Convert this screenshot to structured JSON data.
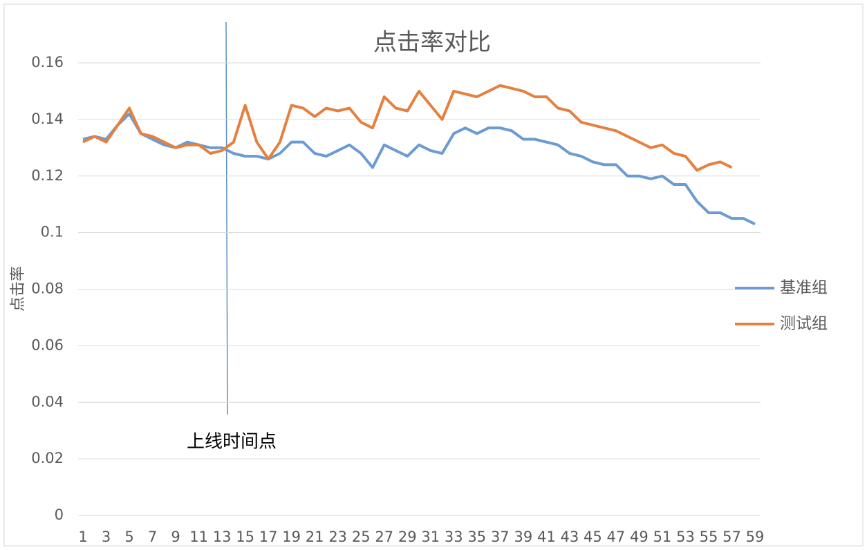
{
  "chart_data": {
    "type": "line",
    "title": "点击率对比",
    "y_label": "点击率",
    "annotation": "上线时间点",
    "categories": [
      "1",
      null,
      "3",
      null,
      "5",
      null,
      "7",
      null,
      "9",
      null,
      "11",
      null,
      "13",
      null,
      "15",
      null,
      "17",
      null,
      "19",
      null,
      "21",
      null,
      "23",
      null,
      "25",
      null,
      "27",
      null,
      "29",
      null,
      "31",
      null,
      "33",
      null,
      "35",
      null,
      "37",
      null,
      "39",
      null,
      "41",
      null,
      "43",
      null,
      "45",
      null,
      "47",
      null,
      "49",
      null,
      "51",
      null,
      "53",
      null,
      "55",
      null,
      "57",
      null,
      "59"
    ],
    "series": [
      {
        "name": "基准组",
        "color": "#6b9bd2",
        "values": [
          0.133,
          0.134,
          0.133,
          0.138,
          0.142,
          0.135,
          0.133,
          0.131,
          0.13,
          0.132,
          0.131,
          0.13,
          0.13,
          0.128,
          0.127,
          0.127,
          0.126,
          0.128,
          0.132,
          0.132,
          0.128,
          0.127,
          0.129,
          0.131,
          0.128,
          0.123,
          0.131,
          0.129,
          0.127,
          0.131,
          0.129,
          0.128,
          0.135,
          0.137,
          0.135,
          0.137,
          0.137,
          0.136,
          0.133,
          0.133,
          0.132,
          0.131,
          0.128,
          0.127,
          0.125,
          0.124,
          0.124,
          0.12,
          0.12,
          0.119,
          0.12,
          0.117,
          0.117,
          0.111,
          0.107,
          0.107,
          0.105,
          0.105,
          0.103
        ]
      },
      {
        "name": "测试组",
        "color": "#e5803f",
        "values": [
          0.132,
          0.134,
          0.132,
          0.138,
          0.144,
          0.135,
          0.134,
          0.132,
          0.13,
          0.131,
          0.131,
          0.128,
          0.129,
          0.132,
          0.145,
          0.132,
          0.126,
          0.132,
          0.145,
          0.144,
          0.141,
          0.144,
          0.143,
          0.144,
          0.139,
          0.137,
          0.148,
          0.144,
          0.143,
          0.15,
          0.145,
          0.14,
          0.15,
          0.149,
          0.148,
          0.15,
          0.152,
          0.151,
          0.15,
          0.148,
          0.148,
          0.144,
          0.143,
          0.139,
          0.138,
          0.137,
          0.136,
          0.134,
          0.132,
          0.13,
          0.131,
          0.128,
          0.127,
          0.122,
          0.124,
          0.125,
          0.123,
          null,
          null
        ]
      }
    ],
    "ylim": [
      0,
      0.16
    ],
    "yticks": [
      0,
      0.02,
      0.04,
      0.06,
      0.08,
      0.1,
      0.12,
      0.14,
      0.16
    ],
    "grid": true,
    "legend": "right"
  }
}
